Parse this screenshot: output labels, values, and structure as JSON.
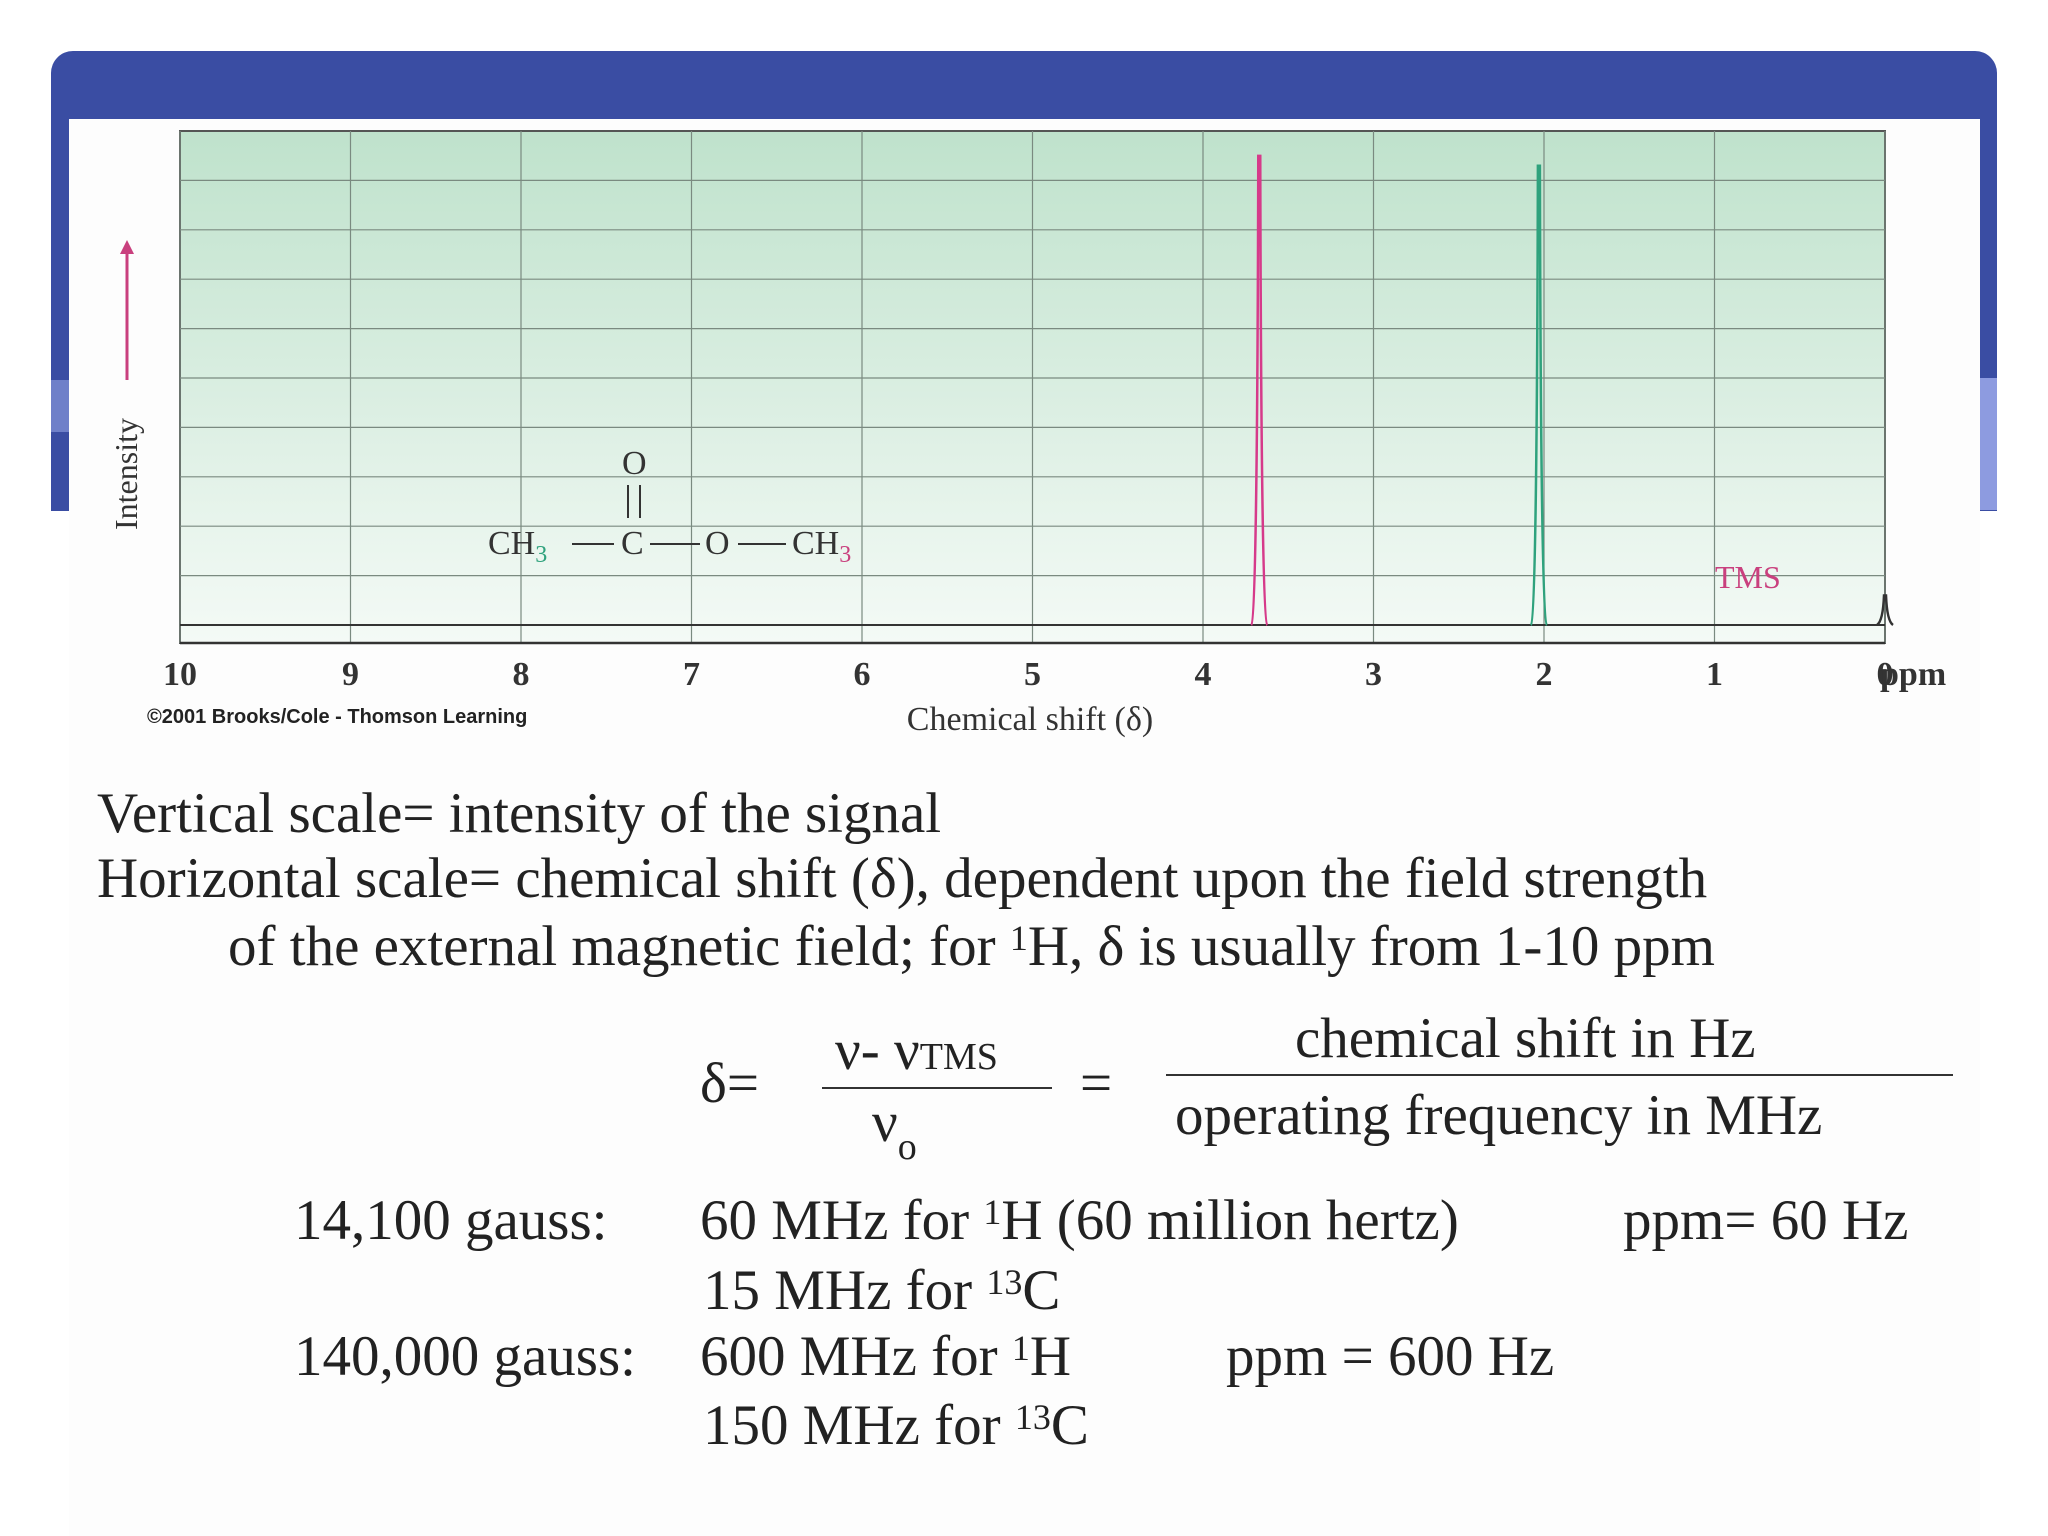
{
  "chart_data": {
    "type": "line",
    "xlabel": "Chemical shift (δ)",
    "ylabel": "Intensity",
    "x_unit": "ppm",
    "xlim": [
      10,
      0
    ],
    "x_ticks": [
      "10",
      "9",
      "8",
      "7",
      "6",
      "5",
      "4",
      "3",
      "2",
      "1",
      "0"
    ],
    "grid": true,
    "peaks": [
      {
        "shift": 3.67,
        "relative_intensity": 0.97,
        "color": "#d63a8a"
      },
      {
        "shift": 2.03,
        "relative_intensity": 0.95,
        "color": "#2fa27d"
      },
      {
        "shift": 0.0,
        "relative_intensity": 0.08,
        "color": "#333333",
        "label": "TMS"
      }
    ],
    "tms_label": "TMS",
    "copyright": "©2001 Brooks/Cole - Thomson Learning",
    "molecule": {
      "top_o": "O",
      "left_ch": "CH",
      "left_sub": "3",
      "c": "C",
      "o": "O",
      "right_ch": "CH",
      "right_sub": "3"
    },
    "colors": {
      "frame": "#3a4da3",
      "grid_bg_top": "#bfe2cc",
      "grid_bg_bottom": "#f4faf6",
      "grid_line": "#7a8a80"
    }
  },
  "notes": {
    "line1": "Vertical scale= intensity of the signal",
    "line2": "Horizontal scale= chemical shift (δ), dependent upon the field strength",
    "line3_a": "of the external magnetic field; for ",
    "line3_sup": "1",
    "line3_b": "H, δ is usually from 1-10 ppm"
  },
  "formula": {
    "delta": "δ=",
    "num_nu": "ν- ν",
    "num_sub": "TMS",
    "den_nu": "ν",
    "den_sub": "o",
    "equals": "=",
    "rhs_num": "chemical shift in Hz",
    "rhs_den": "operating frequency in MHz"
  },
  "fields": {
    "row1_gauss": "14,100 gauss:",
    "row1_a": "60 MHz for ",
    "row1_sup": "1",
    "row1_b": "H (60 million hertz)",
    "row1_ppm": "ppm= 60 Hz",
    "row2_a": "15 MHz for ",
    "row2_sup": "13",
    "row2_b": "C",
    "row3_gauss": "140,000 gauss:",
    "row3_a": "600 MHz for ",
    "row3_sup": "1",
    "row3_b": "H",
    "row3_ppm": "ppm = 600 Hz",
    "row4_a": "150 MHz for ",
    "row4_sup": "13",
    "row4_b": "C"
  }
}
